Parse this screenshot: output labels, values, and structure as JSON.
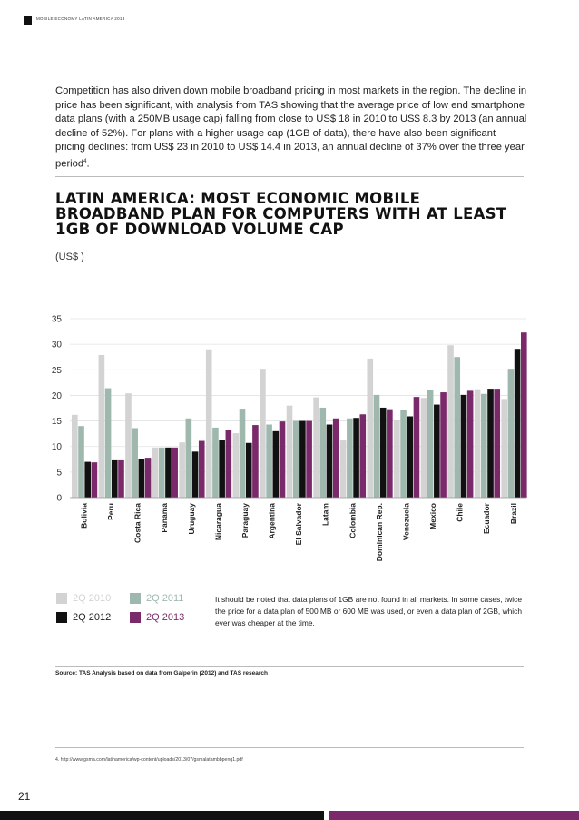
{
  "header": {
    "title": "MOBILE ECONOMY LATIN AMERICA 2013"
  },
  "intro": {
    "text": "Competition has also driven down mobile broadband pricing in most markets in the region. The decline in price has been significant, with analysis from TAS showing that the average price of low end smartphone data plans (with a 250MB usage cap) falling from close to US$ 18 in 2010 to US$ 8.3 by 2013 (an annual decline of 52%). For plans with a higher usage cap (1GB of data), there have also been significant pricing declines: from US$ 23 in 2010 to US$ 14.4 in 2013, an annual decline of 37% over the three year period",
    "footnote_ref": "4",
    "end": "."
  },
  "colors": {
    "s2010": "#d3d3d3",
    "s2011": "#9fb8ae",
    "s2012": "#111111",
    "s2013": "#7a2a6b"
  },
  "chart_data": {
    "type": "bar",
    "title": "LATIN AMERICA: MOST ECONOMIC MOBILE BROADBAND PLAN FOR COMPUTERS WITH AT LEAST 1GB OF DOWNLOAD VOLUME CAP",
    "unit": "(US$ )",
    "ylim": [
      0,
      35
    ],
    "yticks": [
      "0",
      "5",
      "10",
      "15",
      "20",
      "25",
      "30",
      "35"
    ],
    "categories": [
      "Bolivia",
      "Peru",
      "Costa Rica",
      "Panama",
      "Uruguay",
      "Nicaragua",
      "Paraguay",
      "Argentina",
      "El Salvador",
      "Latam",
      "Colombia",
      "Dominican Rep.",
      "Venezuela",
      "Mexico",
      "Chile",
      "Ecuador",
      "Brazil"
    ],
    "series": [
      {
        "name": "2Q 2010",
        "values": [
          16.2,
          27.9,
          20.4,
          9.8,
          10.8,
          29.0,
          12.6,
          25.2,
          18.0,
          19.6,
          11.3,
          27.2,
          15.2,
          19.5,
          29.8,
          21.2,
          19.3
        ]
      },
      {
        "name": "2Q 2011",
        "values": [
          14.0,
          21.4,
          13.6,
          9.8,
          15.5,
          13.7,
          17.4,
          14.3,
          15.0,
          17.6,
          15.5,
          20.1,
          17.2,
          21.1,
          27.5,
          20.3,
          25.2
        ]
      },
      {
        "name": "2Q 2012",
        "values": [
          7.0,
          7.3,
          7.6,
          9.8,
          9.0,
          11.3,
          10.7,
          13.0,
          15.0,
          14.3,
          15.6,
          17.6,
          15.9,
          18.2,
          20.1,
          21.3,
          29.1
        ]
      },
      {
        "name": "2Q 2013",
        "values": [
          6.9,
          7.3,
          7.8,
          9.8,
          11.1,
          13.2,
          14.2,
          14.9,
          15.0,
          15.5,
          16.3,
          17.3,
          19.7,
          20.6,
          20.9,
          21.3,
          32.3
        ]
      }
    ]
  },
  "note": "It should be noted that data plans of 1GB are not found in all markets. In some cases, twice the price for a data plan of 500 MB or 600 MB was used, or even a data plan of 2GB, which ever was cheaper at the time.",
  "source": "Source: TAS Analysis based on data from Galperin (2012) and TAS research",
  "footnote": "4.   http://www.gsma.com/latinamerica/wp-content/uploads/2013/07/gsmalatambbpeng1.pdf",
  "page_number": "21"
}
